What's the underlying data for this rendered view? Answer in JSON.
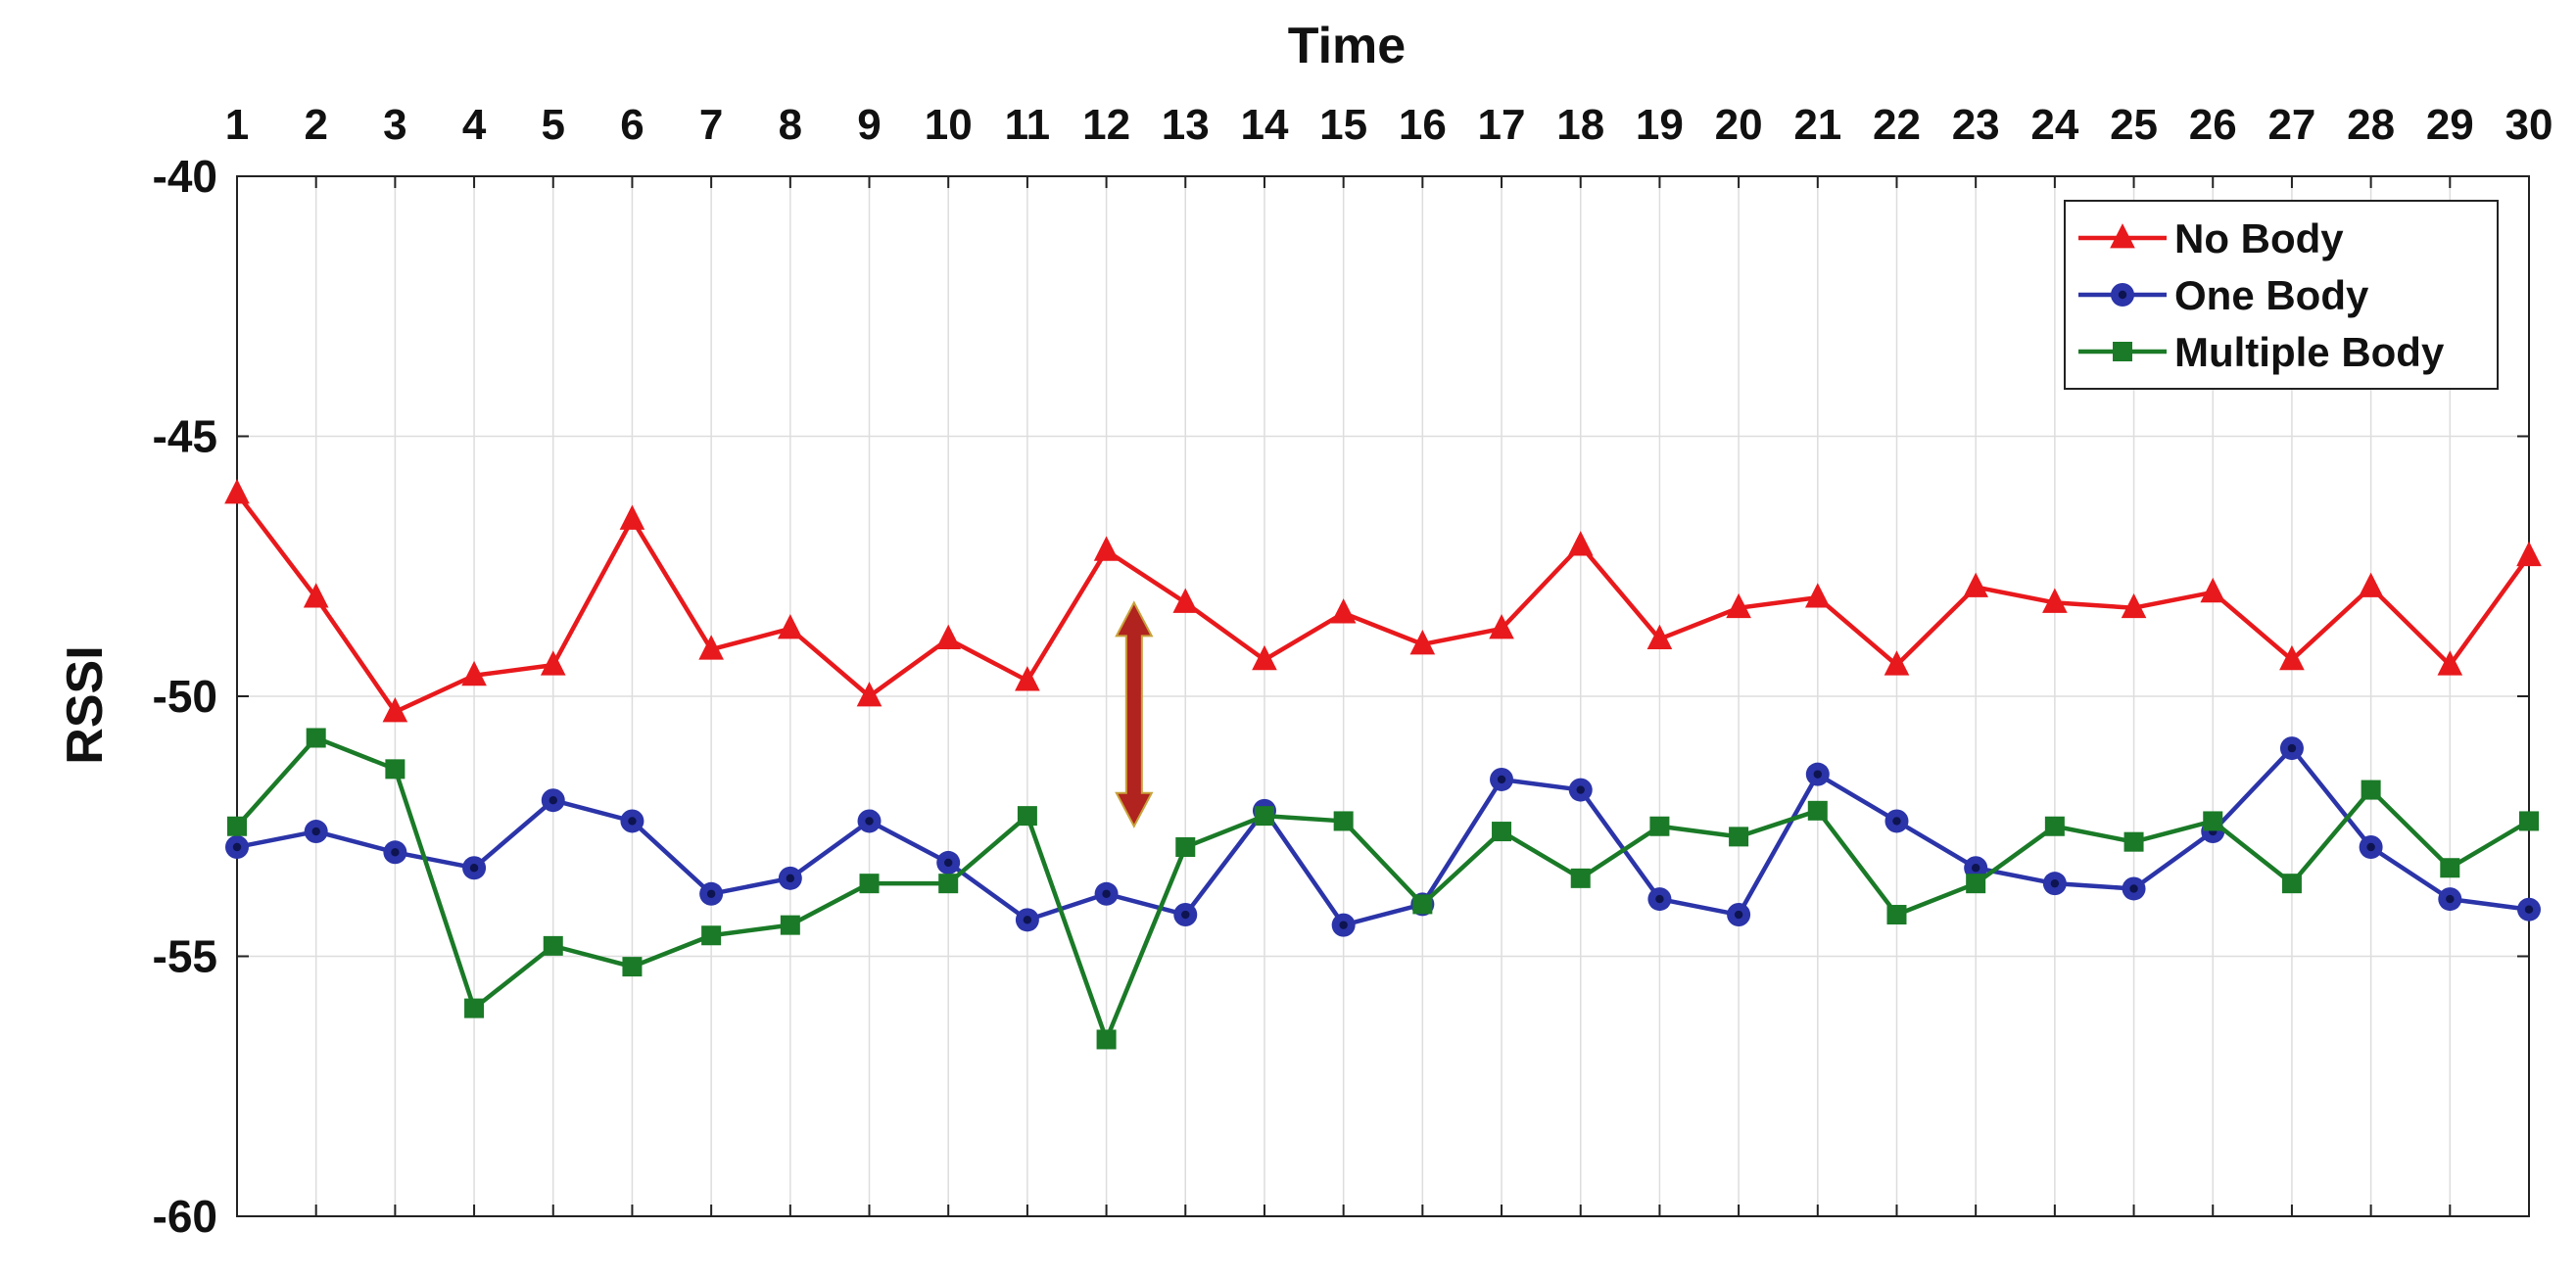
{
  "chart_data": {
    "type": "line",
    "xlabel": "Time",
    "ylabel": "RSSI",
    "xlim": [
      1,
      30
    ],
    "ylim": [
      -60,
      -40
    ],
    "x": [
      1,
      2,
      3,
      4,
      5,
      6,
      7,
      8,
      9,
      10,
      11,
      12,
      13,
      14,
      15,
      16,
      17,
      18,
      19,
      20,
      21,
      22,
      23,
      24,
      25,
      26,
      27,
      28,
      29,
      30
    ],
    "x_tick_labels": [
      "1",
      "2",
      "3",
      "4",
      "5",
      "6",
      "7",
      "8",
      "9",
      "10",
      "11",
      "12",
      "13",
      "14",
      "15",
      "16",
      "17",
      "18",
      "19",
      "20",
      "21",
      "22",
      "23",
      "24",
      "25",
      "26",
      "27",
      "28",
      "29",
      "30"
    ],
    "y_ticks": [
      -40,
      -45,
      -50,
      -55,
      -60
    ],
    "y_tick_labels": [
      "-40",
      "-45",
      "-50",
      "-55",
      "-60"
    ],
    "grid": true,
    "legend_position": "top-right",
    "x_axis_position": "top",
    "series": [
      {
        "name": "No Body",
        "color": "#e8191c",
        "marker": "triangle",
        "values": [
          -46.1,
          -48.1,
          -50.3,
          -49.6,
          -49.4,
          -46.6,
          -49.1,
          -48.7,
          -50.0,
          -48.9,
          -49.7,
          -47.2,
          -48.2,
          -49.3,
          -48.4,
          -49.0,
          -48.7,
          -47.1,
          -48.9,
          -48.3,
          -48.1,
          -49.4,
          -47.9,
          -48.2,
          -48.3,
          -48.0,
          -49.3,
          -47.9,
          -49.4,
          -47.3
        ]
      },
      {
        "name": "One Body",
        "color": "#2b34a8",
        "marker": "circle",
        "values": [
          -52.9,
          -52.6,
          -53.0,
          -53.3,
          -52.0,
          -52.4,
          -53.8,
          -53.5,
          -52.4,
          -53.2,
          -54.3,
          -53.8,
          -54.2,
          -52.2,
          -54.4,
          -54.0,
          -51.6,
          -51.8,
          -53.9,
          -54.2,
          -51.5,
          -52.4,
          -53.3,
          -53.6,
          -53.7,
          -52.6,
          -51.0,
          -52.9,
          -53.9,
          -54.1
        ]
      },
      {
        "name": "Multiple Body",
        "color": "#1a7a27",
        "marker": "square",
        "values": [
          -52.5,
          -50.8,
          -51.4,
          -56.0,
          -54.8,
          -55.2,
          -54.6,
          -54.4,
          -53.6,
          -53.6,
          -52.3,
          -56.6,
          -52.9,
          -52.3,
          -52.4,
          -54.0,
          -52.6,
          -53.5,
          -52.5,
          -52.7,
          -52.2,
          -54.2,
          -53.6,
          -52.5,
          -52.8,
          -52.4,
          -53.6,
          -51.8,
          -53.3,
          -52.4
        ]
      }
    ],
    "annotation": {
      "type": "double-arrow",
      "color": "#b0231e",
      "x": 12.35,
      "y_from": -48.2,
      "y_to": -52.5
    }
  }
}
